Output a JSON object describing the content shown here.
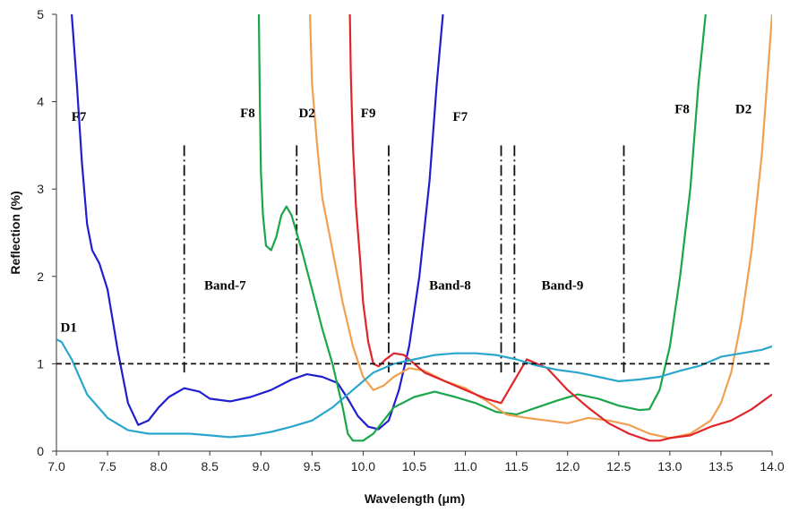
{
  "chart_data": {
    "type": "line",
    "title": "",
    "xlabel": "Wavelength (μm)",
    "ylabel": "Reflection (%)",
    "xlim": [
      7.0,
      14.0
    ],
    "ylim": [
      0,
      5
    ],
    "x_ticks": [
      "7.0",
      "7.5",
      "8.0",
      "8.5",
      "9.0",
      "9.5",
      "10.0",
      "10.5",
      "11.0",
      "11.5",
      "12.0",
      "12.5",
      "13.0",
      "13.5",
      "14.0"
    ],
    "y_ticks": [
      "0",
      "1",
      "2",
      "3",
      "4",
      "5"
    ],
    "grid": false,
    "reference_line": {
      "y": 1.0,
      "style": "dashed"
    },
    "band_markers": [
      8.25,
      9.35,
      10.25,
      11.35,
      11.48,
      12.55
    ],
    "band_labels": [
      {
        "text": "Band-7",
        "x": 8.65,
        "y": 1.85
      },
      {
        "text": "Band-8",
        "x": 10.85,
        "y": 1.85
      },
      {
        "text": "Band-9",
        "x": 11.95,
        "y": 1.85
      }
    ],
    "curve_labels": [
      {
        "text": "F7",
        "x": 7.22,
        "y": 3.78
      },
      {
        "text": "F8",
        "x": 8.87,
        "y": 3.82
      },
      {
        "text": "D2",
        "x": 9.45,
        "y": 3.82
      },
      {
        "text": "F9",
        "x": 10.05,
        "y": 3.82
      },
      {
        "text": "F7",
        "x": 10.95,
        "y": 3.78
      },
      {
        "text": "F8",
        "x": 13.12,
        "y": 3.87
      },
      {
        "text": "D2",
        "x": 13.72,
        "y": 3.87
      },
      {
        "text": "D1",
        "x": 7.12,
        "y": 1.37
      }
    ],
    "series": [
      {
        "name": "F7",
        "color": "#1f1fd0",
        "points": [
          [
            7.15,
            5.0
          ],
          [
            7.2,
            4.2
          ],
          [
            7.25,
            3.3
          ],
          [
            7.3,
            2.6
          ],
          [
            7.35,
            2.3
          ],
          [
            7.42,
            2.15
          ],
          [
            7.5,
            1.85
          ],
          [
            7.6,
            1.15
          ],
          [
            7.7,
            0.55
          ],
          [
            7.8,
            0.3
          ],
          [
            7.9,
            0.35
          ],
          [
            8.0,
            0.5
          ],
          [
            8.1,
            0.62
          ],
          [
            8.25,
            0.72
          ],
          [
            8.4,
            0.68
          ],
          [
            8.5,
            0.6
          ],
          [
            8.7,
            0.57
          ],
          [
            8.9,
            0.62
          ],
          [
            9.1,
            0.7
          ],
          [
            9.3,
            0.82
          ],
          [
            9.45,
            0.88
          ],
          [
            9.6,
            0.85
          ],
          [
            9.75,
            0.78
          ],
          [
            9.85,
            0.6
          ],
          [
            9.95,
            0.4
          ],
          [
            10.05,
            0.28
          ],
          [
            10.15,
            0.25
          ],
          [
            10.25,
            0.35
          ],
          [
            10.35,
            0.7
          ],
          [
            10.45,
            1.2
          ],
          [
            10.55,
            2.0
          ],
          [
            10.65,
            3.1
          ],
          [
            10.72,
            4.2
          ],
          [
            10.78,
            5.0
          ]
        ]
      },
      {
        "name": "F8",
        "color": "#1aa64a",
        "points": [
          [
            8.98,
            5.0
          ],
          [
            8.99,
            4.0
          ],
          [
            9.0,
            3.2
          ],
          [
            9.02,
            2.7
          ],
          [
            9.05,
            2.35
          ],
          [
            9.1,
            2.3
          ],
          [
            9.15,
            2.45
          ],
          [
            9.2,
            2.7
          ],
          [
            9.25,
            2.8
          ],
          [
            9.3,
            2.7
          ],
          [
            9.4,
            2.3
          ],
          [
            9.5,
            1.85
          ],
          [
            9.6,
            1.4
          ],
          [
            9.7,
            1.0
          ],
          [
            9.8,
            0.5
          ],
          [
            9.85,
            0.2
          ],
          [
            9.9,
            0.12
          ],
          [
            10.0,
            0.12
          ],
          [
            10.1,
            0.2
          ],
          [
            10.2,
            0.35
          ],
          [
            10.3,
            0.5
          ],
          [
            10.5,
            0.62
          ],
          [
            10.7,
            0.68
          ],
          [
            10.9,
            0.62
          ],
          [
            11.1,
            0.55
          ],
          [
            11.3,
            0.45
          ],
          [
            11.5,
            0.42
          ],
          [
            11.7,
            0.5
          ],
          [
            11.9,
            0.58
          ],
          [
            12.1,
            0.65
          ],
          [
            12.3,
            0.6
          ],
          [
            12.5,
            0.52
          ],
          [
            12.7,
            0.47
          ],
          [
            12.8,
            0.48
          ],
          [
            12.9,
            0.7
          ],
          [
            13.0,
            1.2
          ],
          [
            13.1,
            2.0
          ],
          [
            13.2,
            3.0
          ],
          [
            13.28,
            4.2
          ],
          [
            13.35,
            5.0
          ]
        ]
      },
      {
        "name": "D2",
        "color": "#f0a050",
        "points": [
          [
            9.48,
            5.0
          ],
          [
            9.5,
            4.2
          ],
          [
            9.55,
            3.5
          ],
          [
            9.6,
            2.9
          ],
          [
            9.7,
            2.3
          ],
          [
            9.8,
            1.7
          ],
          [
            9.9,
            1.2
          ],
          [
            10.0,
            0.85
          ],
          [
            10.1,
            0.7
          ],
          [
            10.2,
            0.75
          ],
          [
            10.3,
            0.85
          ],
          [
            10.45,
            0.95
          ],
          [
            10.6,
            0.92
          ],
          [
            10.8,
            0.8
          ],
          [
            11.0,
            0.72
          ],
          [
            11.2,
            0.58
          ],
          [
            11.4,
            0.42
          ],
          [
            11.6,
            0.38
          ],
          [
            11.8,
            0.35
          ],
          [
            12.0,
            0.32
          ],
          [
            12.2,
            0.38
          ],
          [
            12.4,
            0.35
          ],
          [
            12.6,
            0.3
          ],
          [
            12.8,
            0.2
          ],
          [
            13.0,
            0.15
          ],
          [
            13.2,
            0.2
          ],
          [
            13.4,
            0.35
          ],
          [
            13.5,
            0.55
          ],
          [
            13.6,
            0.9
          ],
          [
            13.7,
            1.5
          ],
          [
            13.8,
            2.3
          ],
          [
            13.9,
            3.4
          ],
          [
            14.0,
            5.0
          ]
        ]
      },
      {
        "name": "F9",
        "color": "#e0242a",
        "points": [
          [
            9.87,
            5.0
          ],
          [
            9.88,
            4.3
          ],
          [
            9.9,
            3.5
          ],
          [
            9.93,
            2.8
          ],
          [
            9.97,
            2.2
          ],
          [
            10.0,
            1.7
          ],
          [
            10.05,
            1.25
          ],
          [
            10.1,
            1.0
          ],
          [
            10.15,
            0.97
          ],
          [
            10.22,
            1.05
          ],
          [
            10.3,
            1.12
          ],
          [
            10.4,
            1.1
          ],
          [
            10.5,
            1.0
          ],
          [
            10.6,
            0.9
          ],
          [
            10.8,
            0.8
          ],
          [
            11.0,
            0.7
          ],
          [
            11.2,
            0.6
          ],
          [
            11.35,
            0.55
          ],
          [
            11.45,
            0.75
          ],
          [
            11.6,
            1.05
          ],
          [
            11.8,
            0.95
          ],
          [
            12.0,
            0.7
          ],
          [
            12.2,
            0.5
          ],
          [
            12.4,
            0.32
          ],
          [
            12.6,
            0.2
          ],
          [
            12.8,
            0.12
          ],
          [
            12.9,
            0.12
          ],
          [
            13.0,
            0.15
          ],
          [
            13.2,
            0.18
          ],
          [
            13.4,
            0.28
          ],
          [
            13.6,
            0.35
          ],
          [
            13.8,
            0.48
          ],
          [
            14.0,
            0.65
          ]
        ]
      },
      {
        "name": "D1",
        "color": "#2aa6cc",
        "points": [
          [
            7.0,
            1.28
          ],
          [
            7.05,
            1.25
          ],
          [
            7.15,
            1.05
          ],
          [
            7.3,
            0.65
          ],
          [
            7.5,
            0.38
          ],
          [
            7.7,
            0.24
          ],
          [
            7.9,
            0.2
          ],
          [
            8.1,
            0.2
          ],
          [
            8.3,
            0.2
          ],
          [
            8.5,
            0.18
          ],
          [
            8.7,
            0.16
          ],
          [
            8.9,
            0.18
          ],
          [
            9.1,
            0.22
          ],
          [
            9.3,
            0.28
          ],
          [
            9.5,
            0.35
          ],
          [
            9.7,
            0.5
          ],
          [
            9.9,
            0.7
          ],
          [
            10.1,
            0.9
          ],
          [
            10.3,
            1.0
          ],
          [
            10.5,
            1.05
          ],
          [
            10.7,
            1.1
          ],
          [
            10.9,
            1.12
          ],
          [
            11.1,
            1.12
          ],
          [
            11.3,
            1.1
          ],
          [
            11.5,
            1.05
          ],
          [
            11.7,
            0.98
          ],
          [
            11.9,
            0.93
          ],
          [
            12.1,
            0.9
          ],
          [
            12.3,
            0.85
          ],
          [
            12.5,
            0.8
          ],
          [
            12.7,
            0.82
          ],
          [
            12.9,
            0.85
          ],
          [
            13.1,
            0.92
          ],
          [
            13.3,
            0.98
          ],
          [
            13.5,
            1.08
          ],
          [
            13.7,
            1.12
          ],
          [
            13.9,
            1.16
          ],
          [
            14.0,
            1.2
          ]
        ]
      }
    ]
  }
}
